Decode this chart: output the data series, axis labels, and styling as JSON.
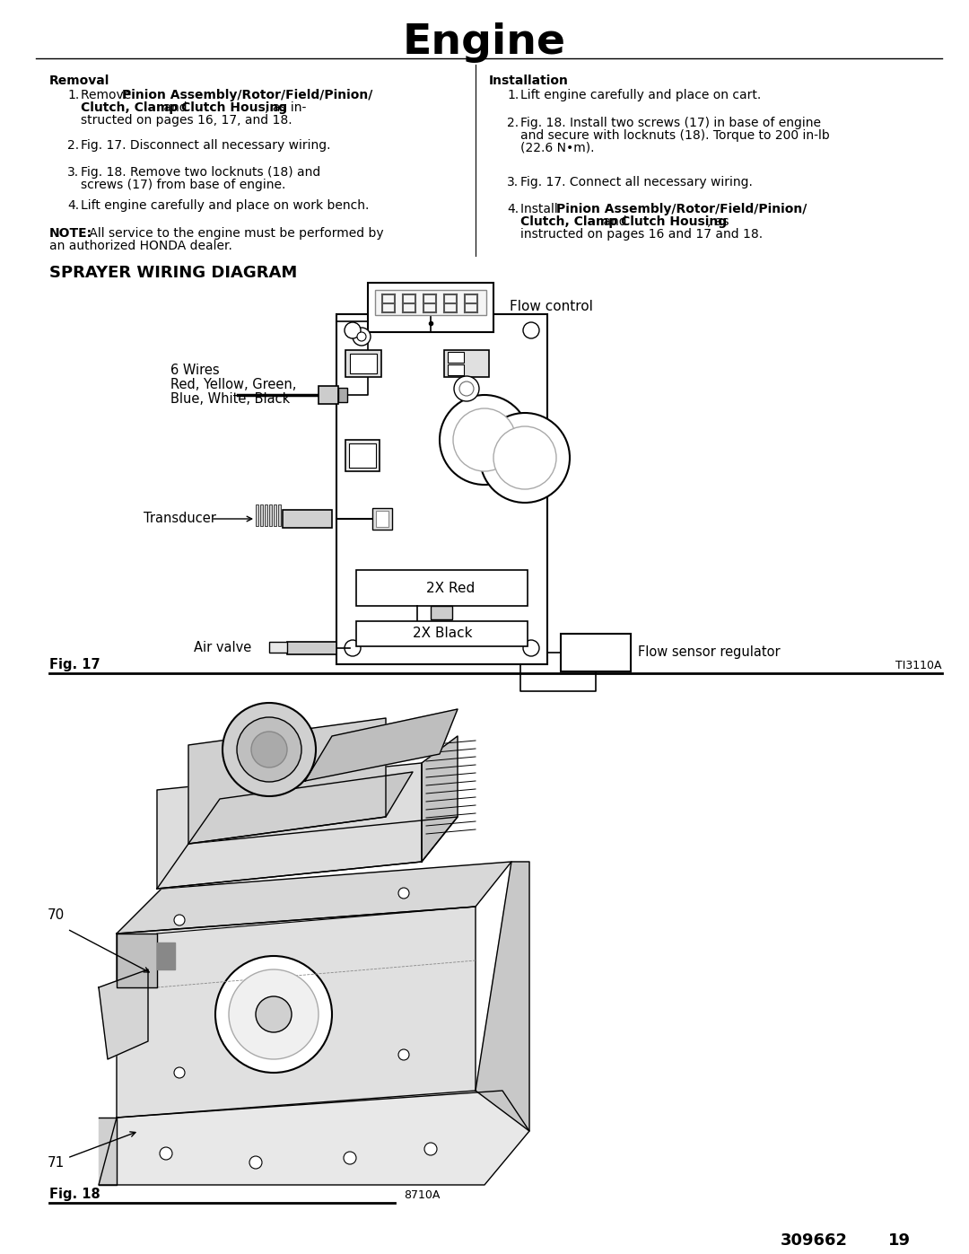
{
  "title": "Engine",
  "bg_color": "#ffffff",
  "text_color": "#000000",
  "page_width": 10.8,
  "page_height": 13.97,
  "removal_header": "Removal",
  "note_text": "NOTE:  All service to the engine must be performed by an authorized HONDA dealer.",
  "installation_header": "Installation",
  "wiring_header": "SPRAYER WIRING DIAGRAM",
  "wires_label1": "6 Wires",
  "wires_label2": "Red, Yellow, Green,",
  "wires_label3": "Blue, White, Black",
  "transducer_label": "Transducer",
  "flow_control_label": "Flow control",
  "red_label": "2X Red",
  "black_label": "2X Black",
  "air_valve_label": "Air valve",
  "flow_sensor_label": "Flow sensor regulator",
  "fig17_label": "Fig. 17",
  "fig17_ref": "TI3110A",
  "fig18_label": "Fig. 18",
  "fig18_ref": "8710A",
  "page_num": "309662",
  "page_num2": "19",
  "dpi": 100
}
